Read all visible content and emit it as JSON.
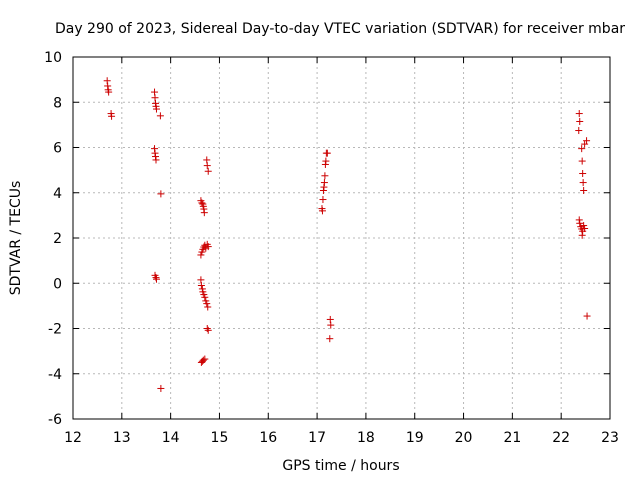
{
  "chart_data": {
    "type": "scatter",
    "title": "Day 290 of 2023, Sidereal Day-to-day VTEC variation (SDTVAR) for receiver mbar",
    "xlabel": "GPS time / hours",
    "ylabel": "SDTVAR / TECUs",
    "xlim": [
      12,
      23
    ],
    "ylim": [
      -6,
      10
    ],
    "xticks": [
      12,
      13,
      14,
      15,
      16,
      17,
      18,
      19,
      20,
      21,
      22,
      23
    ],
    "yticks": [
      -6,
      -4,
      -2,
      0,
      2,
      4,
      6,
      8,
      10
    ],
    "grid": true,
    "marker": "+",
    "color": "#cc0000",
    "series": [
      {
        "name": "SDTVAR",
        "points": [
          [
            12.7,
            8.95
          ],
          [
            12.71,
            8.72
          ],
          [
            12.72,
            8.55
          ],
          [
            12.73,
            8.45
          ],
          [
            12.78,
            7.5
          ],
          [
            12.79,
            7.38
          ],
          [
            13.67,
            8.45
          ],
          [
            13.68,
            8.2
          ],
          [
            13.69,
            7.95
          ],
          [
            13.7,
            7.82
          ],
          [
            13.71,
            7.7
          ],
          [
            13.79,
            7.4
          ],
          [
            13.67,
            5.95
          ],
          [
            13.68,
            5.75
          ],
          [
            13.69,
            5.6
          ],
          [
            13.7,
            5.45
          ],
          [
            13.8,
            3.95
          ],
          [
            13.68,
            0.35
          ],
          [
            13.7,
            0.25
          ],
          [
            13.71,
            0.18
          ],
          [
            13.8,
            -4.65
          ],
          [
            14.62,
            3.65
          ],
          [
            14.64,
            3.55
          ],
          [
            14.66,
            3.5
          ],
          [
            14.67,
            3.4
          ],
          [
            14.68,
            3.28
          ],
          [
            14.69,
            3.12
          ],
          [
            14.74,
            5.45
          ],
          [
            14.75,
            5.2
          ],
          [
            14.77,
            4.95
          ],
          [
            14.62,
            1.25
          ],
          [
            14.64,
            1.38
          ],
          [
            14.66,
            1.5
          ],
          [
            14.68,
            1.6
          ],
          [
            14.7,
            1.68
          ],
          [
            14.72,
            1.55
          ],
          [
            14.75,
            1.72
          ],
          [
            14.77,
            1.62
          ],
          [
            14.62,
            0.15
          ],
          [
            14.63,
            -0.1
          ],
          [
            14.65,
            -0.25
          ],
          [
            14.66,
            -0.38
          ],
          [
            14.68,
            -0.5
          ],
          [
            14.7,
            -0.62
          ],
          [
            14.72,
            -0.78
          ],
          [
            14.74,
            -0.9
          ],
          [
            14.76,
            -1.05
          ],
          [
            14.75,
            -2.0
          ],
          [
            14.77,
            -2.08
          ],
          [
            14.63,
            -3.5
          ],
          [
            14.65,
            -3.45
          ],
          [
            14.67,
            -3.4
          ],
          [
            14.7,
            -3.35
          ],
          [
            17.1,
            3.3
          ],
          [
            17.11,
            3.2
          ],
          [
            17.12,
            3.7
          ],
          [
            17.13,
            4.1
          ],
          [
            17.14,
            4.25
          ],
          [
            17.15,
            4.45
          ],
          [
            17.16,
            4.75
          ],
          [
            17.17,
            5.25
          ],
          [
            17.18,
            5.4
          ],
          [
            17.19,
            5.75
          ],
          [
            17.21,
            5.75
          ],
          [
            17.27,
            -1.6
          ],
          [
            17.28,
            -1.85
          ],
          [
            17.26,
            -2.45
          ],
          [
            22.37,
            7.5
          ],
          [
            22.38,
            7.15
          ],
          [
            22.36,
            6.75
          ],
          [
            22.42,
            5.95
          ],
          [
            22.48,
            6.15
          ],
          [
            22.52,
            6.3
          ],
          [
            22.43,
            5.4
          ],
          [
            22.44,
            4.85
          ],
          [
            22.45,
            4.45
          ],
          [
            22.46,
            4.1
          ],
          [
            22.37,
            2.8
          ],
          [
            22.38,
            2.65
          ],
          [
            22.4,
            2.5
          ],
          [
            22.42,
            2.4
          ],
          [
            22.44,
            2.3
          ],
          [
            22.46,
            2.55
          ],
          [
            22.48,
            2.42
          ],
          [
            22.43,
            2.12
          ],
          [
            22.53,
            -1.45
          ]
        ]
      }
    ]
  }
}
